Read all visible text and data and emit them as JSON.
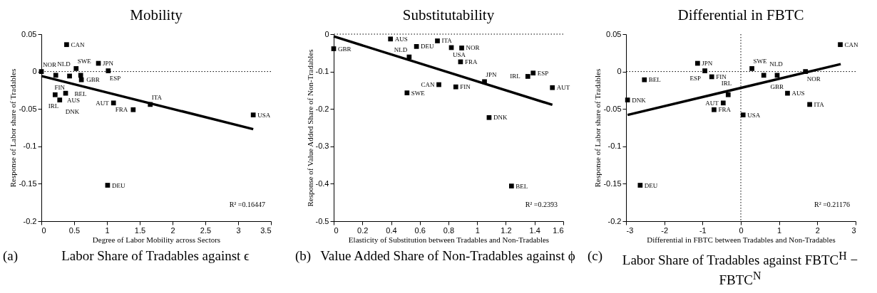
{
  "chart_data": [
    {
      "type": "scatter",
      "title": "Mobility",
      "xlabel": "Degree of Labor Mobility across Sectors",
      "ylabel": "Response of Labor share of Tradables",
      "xlim": [
        0,
        3.5
      ],
      "xticks": [
        0,
        0.5,
        1,
        1.5,
        2,
        2.5,
        3,
        3.5
      ],
      "ylim": [
        -0.2,
        0.05
      ],
      "yticks": [
        -0.2,
        -0.15,
        -0.1,
        -0.05,
        0,
        0.05
      ],
      "grid": false,
      "series": [
        {
          "marker": "square",
          "color": "#000000",
          "x": [
            0,
            0.385,
            0.53,
            0.87,
            1.02,
            0.22,
            0.43,
            0.6,
            0.61,
            0.21,
            0.37,
            0.28,
            1.1,
            1.4,
            1.66,
            3.23,
            1.01
          ],
          "values": [
            0,
            0.036,
            0.004,
            0.011,
            0.001,
            -0.005,
            -0.006,
            -0.005,
            -0.011,
            -0.031,
            -0.029,
            -0.038,
            -0.042,
            -0.051,
            -0.044,
            -0.058,
            -0.152
          ],
          "value_labels": [
            "NOR",
            "CAN",
            "SWE",
            "JPN",
            "ESP",
            "NLD",
            "FIN",
            "GBR",
            "BEL",
            "IRL",
            "AUS",
            "DNK",
            "AUT",
            "FRA",
            "ITA",
            "USA",
            "DEU"
          ]
        },
        {
          "type": "line",
          "marker": "none",
          "color": "#000000",
          "x": [
            0,
            3.23
          ],
          "values": [
            -0.006,
            -0.077
          ]
        }
      ],
      "ref_lines": [
        {
          "axis": "y",
          "value": 0,
          "color": "#000000",
          "line_style": "dotted"
        }
      ],
      "annotations": [
        "R² =0.16447",
        "(a)",
        "Labor Share of Tradables against ϵ"
      ]
    },
    {
      "type": "scatter",
      "title": "Substitutability",
      "xlabel": "Elasticity of Substitution between Tradables and Non-Tradables",
      "ylabel": "Response of Value Added Share of Non-Tradables",
      "xlim": [
        0,
        1.6
      ],
      "xticks": [
        0,
        0.2,
        0.4,
        0.6,
        0.8,
        1,
        1.2,
        1.4,
        1.6
      ],
      "ylim": [
        -0.5,
        0
      ],
      "yticks": [
        -0.5,
        -0.4,
        -0.3,
        -0.2,
        -0.1,
        0
      ],
      "grid": false,
      "series": [
        {
          "marker": "square",
          "color": "#000000",
          "x": [
            0,
            0.396,
            0.723,
            0.577,
            0.82,
            0.892,
            0.526,
            0.884,
            1.39,
            1.353,
            1.051,
            1.524,
            0.733,
            0.851,
            0.511,
            1.083,
            1.239
          ],
          "values": [
            -0.039,
            -0.013,
            -0.018,
            -0.033,
            -0.036,
            -0.037,
            -0.061,
            -0.074,
            -0.104,
            -0.113,
            -0.127,
            -0.143,
            -0.135,
            -0.141,
            -0.157,
            -0.223,
            -0.406
          ],
          "value_labels": [
            "GBR",
            "AUS",
            "ITA",
            "DEU",
            "USA",
            "NOR",
            "NLD",
            "FRA",
            "ESP",
            "IRL",
            "JPN",
            "AUT",
            "CAN",
            "FIN",
            "SWE",
            "DNK",
            "BEL"
          ]
        },
        {
          "type": "line",
          "marker": "none",
          "color": "#000000",
          "x": [
            0,
            1.524
          ],
          "values": [
            -0.006,
            -0.189
          ]
        }
      ],
      "ref_lines": [
        {
          "axis": "y",
          "value": 0,
          "color": "#000000",
          "line_style": "dotted"
        }
      ],
      "annotations": [
        "R² =0.2393",
        "(b)",
        "Value Added Share of Non-Tradables against ϕ"
      ]
    },
    {
      "type": "scatter",
      "title": "Differential in FBTC",
      "xlabel": "Differential in FBTC between Tradables and Non-Tradables",
      "ylabel": "Response of Labor share of Tradables",
      "xlim": [
        -3,
        3
      ],
      "xticks": [
        -3,
        -2,
        -1,
        0,
        1,
        2,
        3
      ],
      "ylim": [
        -0.2,
        0.05
      ],
      "yticks": [
        -0.2,
        -0.15,
        -0.1,
        -0.05,
        0,
        0.05
      ],
      "grid": false,
      "series": [
        {
          "marker": "square",
          "color": "#000000",
          "x": [
            2.6,
            -1.13,
            -0.94,
            0.29,
            0.6,
            0.95,
            1.69,
            -0.76,
            -2.52,
            -2.96,
            -0.33,
            1.22,
            -0.46,
            -0.7,
            1.8,
            0.06,
            -2.63
          ],
          "values": [
            0.036,
            0.011,
            0.001,
            0.004,
            -0.005,
            -0.005,
            0,
            -0.007,
            -0.011,
            -0.038,
            -0.031,
            -0.029,
            -0.042,
            -0.051,
            -0.044,
            -0.058,
            -0.152
          ],
          "value_labels": [
            "CAN",
            "JPN",
            "ESP",
            "SWE",
            "NLD",
            "GBR",
            "NOR",
            "FIN",
            "BEL",
            "DNK",
            "IRL",
            "AUS",
            "AUT",
            "FRA",
            "ITA",
            "USA",
            "DEU"
          ]
        },
        {
          "type": "line",
          "marker": "none",
          "color": "#000000",
          "x": [
            -2.96,
            2.61
          ],
          "values": [
            -0.058,
            0.01
          ]
        }
      ],
      "ref_lines": [
        {
          "axis": "y",
          "value": 0,
          "color": "#000000",
          "line_style": "dotted"
        },
        {
          "axis": "x",
          "value": 0,
          "color": "#000000",
          "line_style": "dotted"
        }
      ],
      "annotations": [
        "R² =0.21176",
        "(c)",
        "Labor Share of Tradables against FBTC$^{H}$ − FBTC$^{N}$"
      ]
    }
  ]
}
